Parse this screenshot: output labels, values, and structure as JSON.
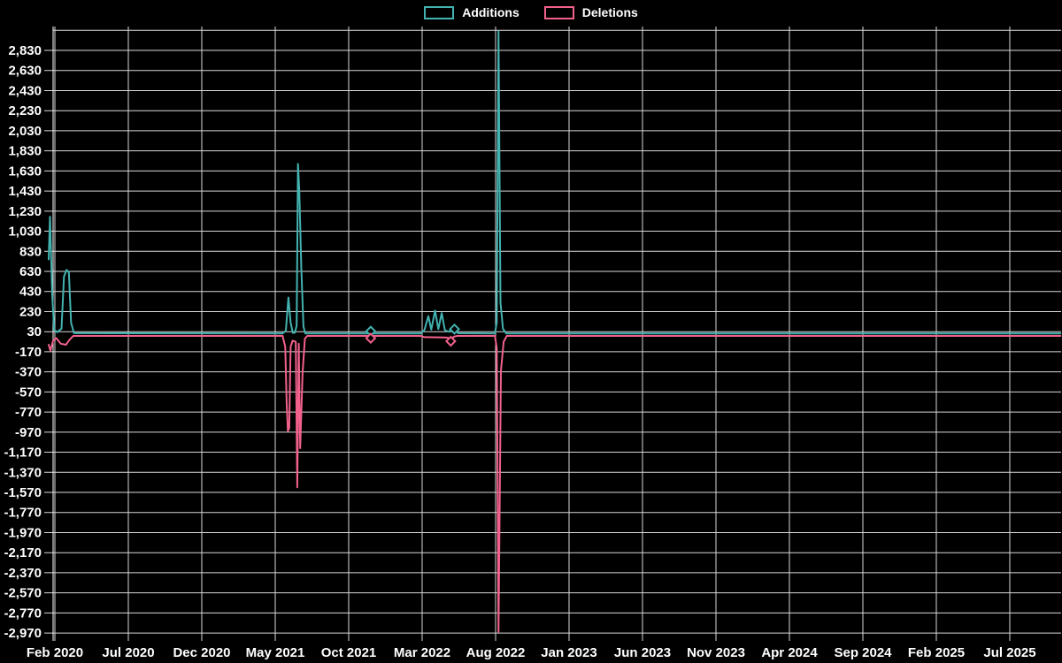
{
  "legend": {
    "position": "top",
    "items": [
      {
        "label": "Additions",
        "color": "#42b3b0"
      },
      {
        "label": "Deletions",
        "color": "#f2618c"
      }
    ]
  },
  "colors": {
    "background": "#000000",
    "grid": "#d8d8d8",
    "axis": "#ffffff",
    "text": "#ffffff",
    "additions": "#42b3b0",
    "deletions": "#f2618c"
  },
  "chart_data": {
    "type": "line",
    "title": "",
    "xlabel": "",
    "ylabel": "",
    "legend_position": "top",
    "grid": "on",
    "x_unit": "months since Feb 2020 (ticks every 5 months)",
    "x_axis": {
      "tick_labels": [
        "Feb 2020",
        "Jul 2020",
        "Dec 2020",
        "May 2021",
        "Oct 2021",
        "Mar 2022",
        "Aug 2022",
        "Jan 2023",
        "Jun 2023",
        "Nov 2023",
        "Apr 2024",
        "Sep 2024",
        "Feb 2025",
        "Jul 2025"
      ],
      "months_per_tick": 5
    },
    "y_axis": {
      "tick_labels": [
        "2,830",
        "2,630",
        "2,430",
        "2,230",
        "2,030",
        "1,830",
        "1,630",
        "1,430",
        "1,230",
        "1,030",
        "830",
        "630",
        "430",
        "230",
        "30",
        "-170",
        "-370",
        "-570",
        "-770",
        "-970",
        "-1,170",
        "-1,370",
        "-1,570",
        "-1,770",
        "-1,970",
        "-2,170",
        "-2,370",
        "-2,570",
        "-2,770",
        "-2,970"
      ],
      "tick_values": [
        2830,
        2630,
        2430,
        2230,
        2030,
        1830,
        1630,
        1430,
        1230,
        1030,
        830,
        630,
        430,
        230,
        30,
        -170,
        -370,
        -570,
        -770,
        -970,
        -1170,
        -1370,
        -1570,
        -1770,
        -1970,
        -2170,
        -2370,
        -2570,
        -2770,
        -2970
      ],
      "grid_values": [
        3030,
        2830,
        2630,
        2430,
        2230,
        2030,
        1830,
        1630,
        1430,
        1230,
        1030,
        830,
        630,
        430,
        230,
        30,
        -170,
        -370,
        -570,
        -770,
        -970,
        -1170,
        -1370,
        -1570,
        -1770,
        -1970,
        -2170,
        -2370,
        -2570,
        -2770,
        -2970
      ],
      "min": -3000,
      "max": 3060
    },
    "series": [
      {
        "name": "Additions",
        "color": "#42b3b0",
        "points": [
          [
            -0.42,
            750
          ],
          [
            -0.33,
            1175
          ],
          [
            -0.18,
            400
          ],
          [
            -0.05,
            50
          ],
          [
            0.15,
            25
          ],
          [
            0.45,
            60
          ],
          [
            0.62,
            580
          ],
          [
            0.8,
            645
          ],
          [
            0.95,
            620
          ],
          [
            1.1,
            120
          ],
          [
            1.3,
            15
          ],
          [
            15.5,
            12
          ],
          [
            15.72,
            40
          ],
          [
            15.9,
            370
          ],
          [
            16.05,
            120
          ],
          [
            16.2,
            18
          ],
          [
            16.34,
            20
          ],
          [
            16.46,
            90
          ],
          [
            16.55,
            1700
          ],
          [
            16.64,
            1430
          ],
          [
            16.78,
            650
          ],
          [
            16.92,
            80
          ],
          [
            17.05,
            12
          ],
          [
            21.3,
            12
          ],
          [
            21.5,
            35
          ],
          [
            21.7,
            12
          ],
          [
            24.9,
            12
          ],
          [
            25.15,
            45
          ],
          [
            25.42,
            185
          ],
          [
            25.62,
            50
          ],
          [
            25.88,
            240
          ],
          [
            26.1,
            55
          ],
          [
            26.33,
            215
          ],
          [
            26.55,
            45
          ],
          [
            26.8,
            30
          ],
          [
            27.2,
            55
          ],
          [
            27.45,
            14
          ],
          [
            29.95,
            12
          ],
          [
            30.08,
            120
          ],
          [
            30.2,
            3020
          ],
          [
            30.33,
            320
          ],
          [
            30.5,
            60
          ],
          [
            30.72,
            12
          ],
          [
            68.45,
            12
          ]
        ],
        "marker_points": [
          [
            21.5,
            35
          ],
          [
            27.2,
            55
          ]
        ]
      },
      {
        "name": "Deletions",
        "color": "#f2618c",
        "points": [
          [
            -0.42,
            -100
          ],
          [
            -0.3,
            -160
          ],
          [
            -0.12,
            -60
          ],
          [
            0.1,
            -35
          ],
          [
            0.4,
            -90
          ],
          [
            0.75,
            -100
          ],
          [
            1.0,
            -50
          ],
          [
            1.25,
            -12
          ],
          [
            15.5,
            -12
          ],
          [
            15.68,
            -120
          ],
          [
            15.78,
            -680
          ],
          [
            15.86,
            -960
          ],
          [
            15.95,
            -930
          ],
          [
            16.05,
            -120
          ],
          [
            16.18,
            -60
          ],
          [
            16.4,
            -70
          ],
          [
            16.5,
            -1520
          ],
          [
            16.6,
            -90
          ],
          [
            16.7,
            -1130
          ],
          [
            16.86,
            -380
          ],
          [
            17.02,
            -40
          ],
          [
            17.18,
            -12
          ],
          [
            21.3,
            -12
          ],
          [
            21.5,
            -35
          ],
          [
            21.7,
            -12
          ],
          [
            24.9,
            -12
          ],
          [
            25.15,
            -25
          ],
          [
            26.55,
            -28
          ],
          [
            26.75,
            -30
          ],
          [
            26.95,
            -65
          ],
          [
            27.15,
            -20
          ],
          [
            27.4,
            -12
          ],
          [
            29.95,
            -12
          ],
          [
            30.08,
            -130
          ],
          [
            30.2,
            -2960
          ],
          [
            30.36,
            -360
          ],
          [
            30.55,
            -70
          ],
          [
            30.76,
            -12
          ],
          [
            68.45,
            -12
          ]
        ],
        "marker_points": [
          [
            21.5,
            -35
          ],
          [
            26.95,
            -65
          ]
        ]
      }
    ]
  }
}
